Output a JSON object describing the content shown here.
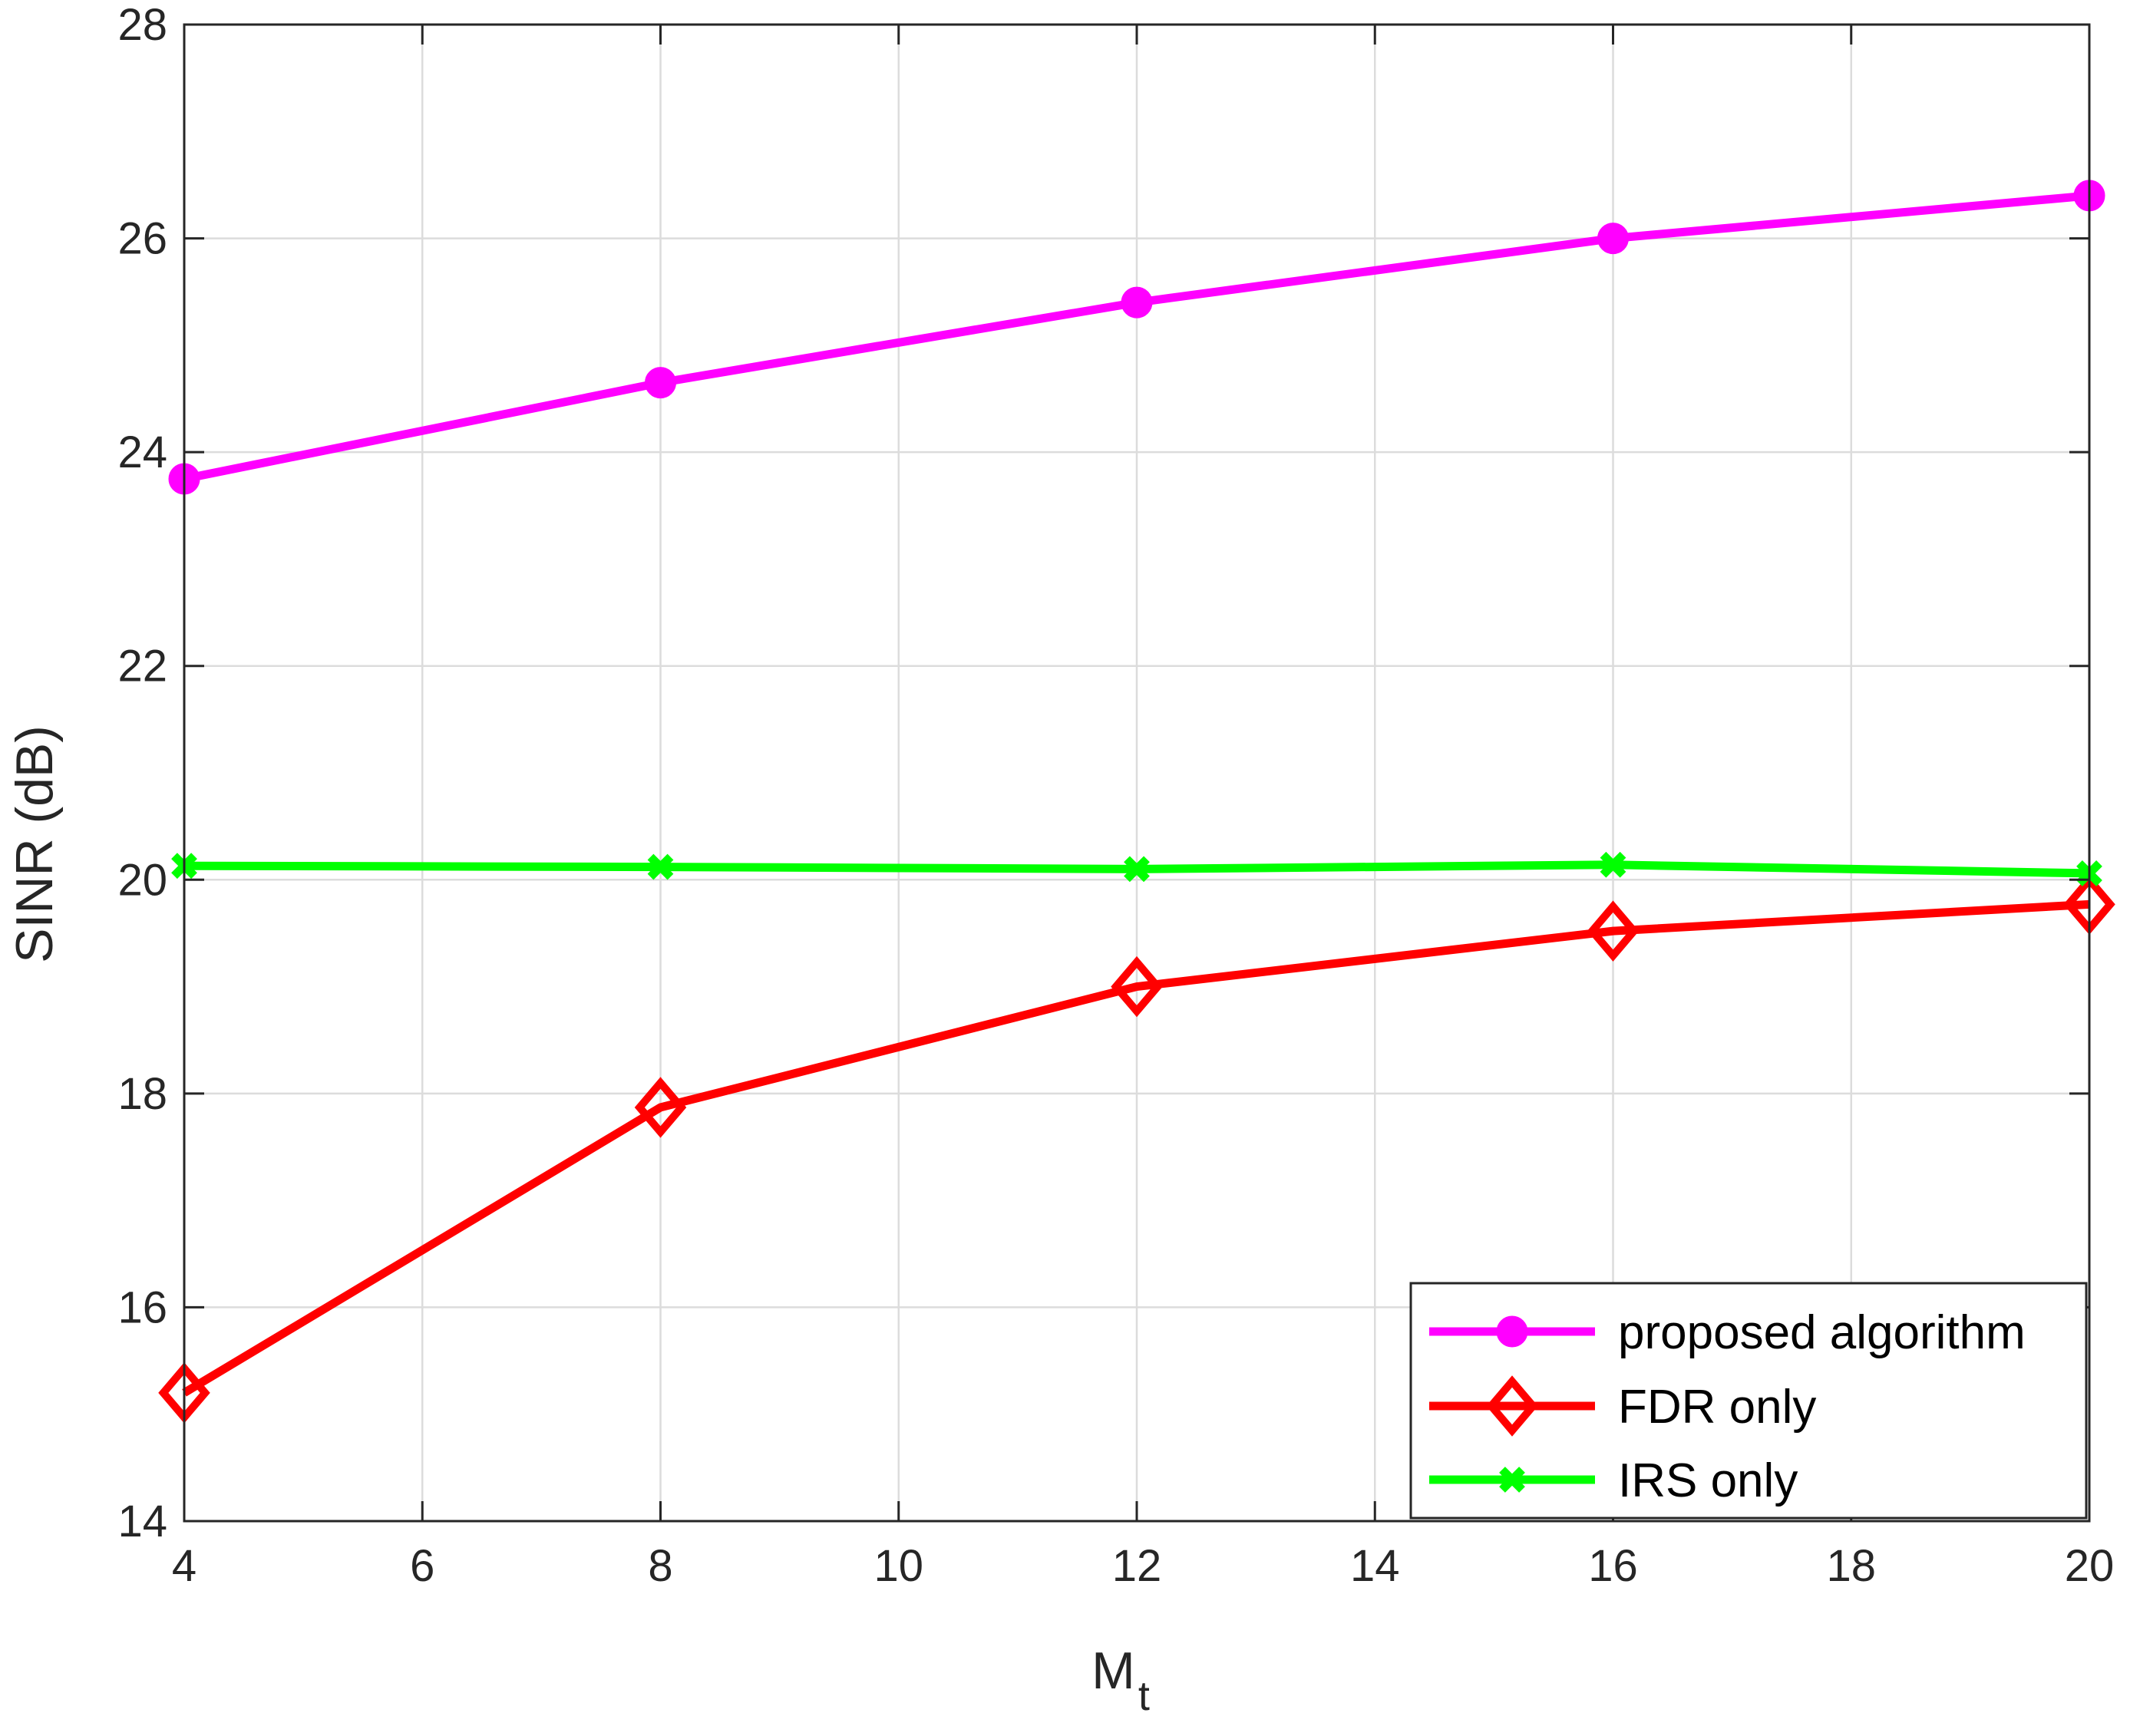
{
  "chart_data": {
    "type": "line",
    "title": "",
    "xlabel": "M",
    "xlabel_subscript": "t",
    "ylabel": "SINR (dB)",
    "xlim": [
      4,
      20
    ],
    "ylim": [
      14,
      28
    ],
    "xticks": [
      "4",
      "6",
      "8",
      "10",
      "12",
      "14",
      "16",
      "18",
      "20"
    ],
    "yticks": [
      "14",
      "16",
      "18",
      "20",
      "22",
      "24",
      "26",
      "28"
    ],
    "grid": true,
    "legend_position": "bottom-right",
    "x": [
      4,
      8,
      12,
      16,
      20
    ],
    "series": [
      {
        "name": "proposed algorithm",
        "values": [
          23.75,
          24.65,
          25.4,
          26.0,
          26.4
        ],
        "color": "#ff00ff",
        "marker": "circle"
      },
      {
        "name": "FDR only",
        "values": [
          15.2,
          17.87,
          19.0,
          19.52,
          19.77
        ],
        "color": "#ff0000",
        "marker": "diamond"
      },
      {
        "name": "IRS only",
        "values": [
          20.13,
          20.12,
          20.1,
          20.14,
          20.06
        ],
        "color": "#00ff00",
        "marker": "x"
      }
    ]
  }
}
